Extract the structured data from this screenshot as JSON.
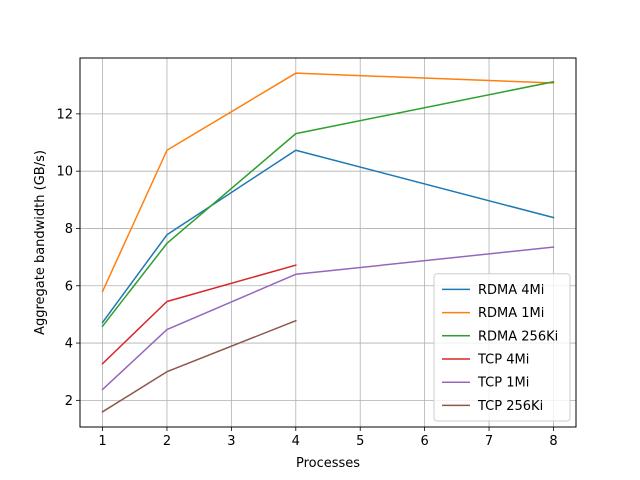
{
  "chart_data": {
    "type": "line",
    "title": "",
    "xlabel": "Processes",
    "ylabel": "Aggregate bandwidth (GB/s)",
    "xlim": [
      0.65,
      8.35
    ],
    "ylim": [
      1.07,
      13.95
    ],
    "x_ticks": [
      1,
      2,
      3,
      4,
      5,
      6,
      7,
      8
    ],
    "y_ticks": [
      2,
      4,
      6,
      8,
      10,
      12
    ],
    "grid": true,
    "legend_position": "lower-right",
    "series": [
      {
        "name": "RDMA 4Mi",
        "color": "#1f77b4",
        "x": [
          1,
          2,
          4,
          8
        ],
        "y": [
          4.72,
          7.78,
          10.73,
          8.38
        ]
      },
      {
        "name": "RDMA 1Mi",
        "color": "#ff7f0e",
        "x": [
          1,
          2,
          4,
          8
        ],
        "y": [
          5.8,
          10.73,
          13.42,
          13.08
        ]
      },
      {
        "name": "RDMA 256Ki",
        "color": "#2ca02c",
        "x": [
          1,
          2,
          4,
          8
        ],
        "y": [
          4.59,
          7.48,
          11.31,
          13.12
        ]
      },
      {
        "name": "TCP 4Mi",
        "color": "#d62728",
        "x": [
          1,
          2,
          4
        ],
        "y": [
          3.28,
          5.45,
          6.72
        ]
      },
      {
        "name": "TCP 1Mi",
        "color": "#9467bd",
        "x": [
          1,
          2,
          4,
          8
        ],
        "y": [
          2.38,
          4.47,
          6.4,
          7.35
        ]
      },
      {
        "name": "TCP 256Ki",
        "color": "#8c564b",
        "x": [
          1,
          2,
          4
        ],
        "y": [
          1.6,
          3.0,
          4.78
        ]
      }
    ]
  }
}
